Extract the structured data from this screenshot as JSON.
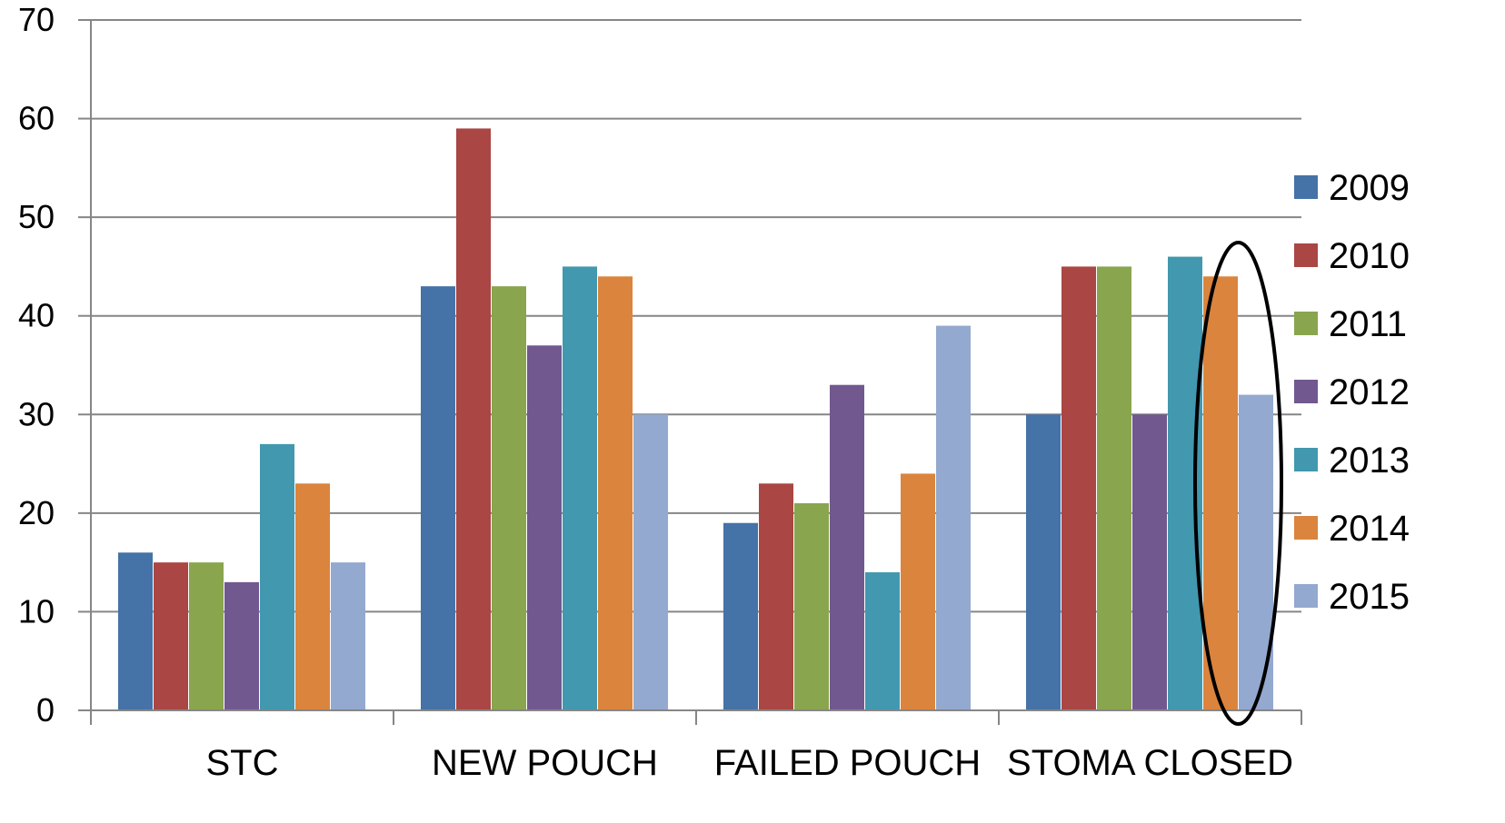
{
  "chart_data": {
    "type": "bar",
    "title": "",
    "xlabel": "",
    "ylabel": "",
    "ylim": [
      0,
      70
    ],
    "yticks": [
      "0",
      "10",
      "20",
      "30",
      "40",
      "50",
      "60",
      "70"
    ],
    "grid": true,
    "legend_position": "right",
    "categories": [
      "STC",
      "NEW POUCH",
      "FAILED POUCH",
      "STOMA CLOSED"
    ],
    "series": [
      {
        "name": "2009",
        "color": "#4572a7",
        "values": [
          16,
          43,
          19,
          30
        ]
      },
      {
        "name": "2010",
        "color": "#aa4643",
        "values": [
          15,
          59,
          23,
          45
        ]
      },
      {
        "name": "2011",
        "color": "#89a54e",
        "values": [
          15,
          43,
          21,
          45
        ]
      },
      {
        "name": "2012",
        "color": "#71588f",
        "values": [
          13,
          37,
          33,
          30
        ]
      },
      {
        "name": "2013",
        "color": "#4198af",
        "values": [
          27,
          45,
          14,
          46
        ]
      },
      {
        "name": "2014",
        "color": "#db843d",
        "values": [
          23,
          44,
          24,
          44
        ]
      },
      {
        "name": "2015",
        "color": "#93a9cf",
        "values": [
          15,
          30,
          39,
          32
        ]
      }
    ],
    "annotations": [
      {
        "type": "ellipse",
        "category": "STOMA CLOSED",
        "series": [
          "2014",
          "2015"
        ]
      }
    ]
  }
}
